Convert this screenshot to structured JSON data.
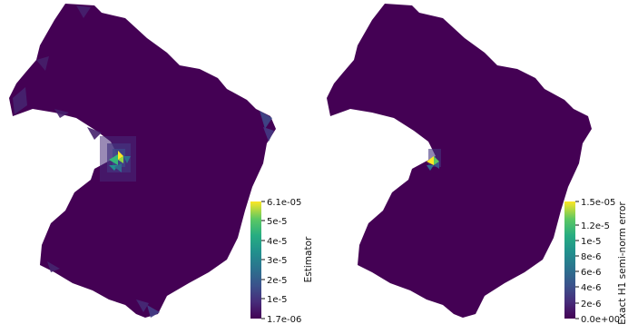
{
  "panels": [
    {
      "id": "estimator",
      "colorbar": {
        "title": "Estimator",
        "ticks": [
          "6.1e-05",
          "5e-5",
          "4e-5",
          "3e-5",
          "2e-5",
          "1e-5",
          "1.7e-06"
        ]
      },
      "colors": {
        "background_mesh": "#440154",
        "hotspot_high": "#fde725",
        "hotspot_mid": "#35b779",
        "hotspot_low": "#31688e"
      }
    },
    {
      "id": "exact-h1-error",
      "colorbar": {
        "title": "Exact H1 semi-norm error",
        "ticks": [
          "1.5e-05",
          "1.2e-5",
          "1e-5",
          "8e-6",
          "6e-6",
          "4e-6",
          "2e-6",
          "0.0e+00"
        ]
      },
      "colors": {
        "background_mesh": "#440154",
        "hotspot_high": "#fde725",
        "hotspot_mid": "#35b779",
        "hotspot_low": "#31688e"
      }
    }
  ],
  "colormap": "viridis"
}
